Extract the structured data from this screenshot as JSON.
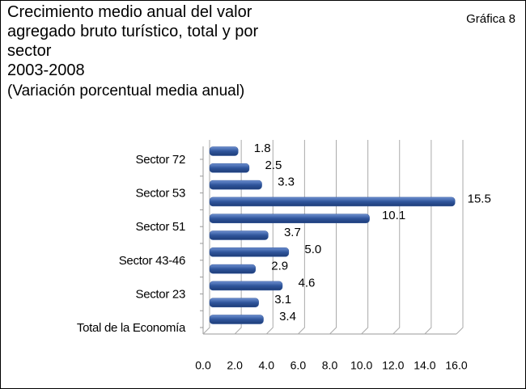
{
  "chart_data": {
    "type": "hbar",
    "title": "Crecimiento medio anual del valor agregado bruto turístico, total y por sector",
    "period": "2003-2008",
    "subtitle": "(Variación porcentual media anual)",
    "annotation": "Gráfica 8",
    "categories": [
      "Sector 72",
      null,
      "Sector 53",
      null,
      "Sector 51",
      null,
      "Sector 43-46",
      null,
      "Sector 23",
      null,
      "Total de la Economía"
    ],
    "values": [
      1.8,
      2.5,
      3.3,
      15.5,
      10.1,
      3.7,
      5.0,
      2.9,
      4.6,
      3.1,
      3.4
    ],
    "value_labels": [
      "1.8",
      "2.5",
      "3.3",
      "15.5",
      "10.1",
      "3.7",
      "5.0",
      "2.9",
      "4.6",
      "3.1",
      "3.4"
    ],
    "color": "#2f559b",
    "xlim": [
      0,
      16
    ],
    "xticks": [
      {
        "value": 0,
        "label": "0.0"
      },
      {
        "value": 2,
        "label": "2.0"
      },
      {
        "value": 4,
        "label": "4.0"
      },
      {
        "value": 6,
        "label": "6.0"
      },
      {
        "value": 8,
        "label": "8.0"
      },
      {
        "value": 10,
        "label": "10.0"
      },
      {
        "value": 12,
        "label": "12.0"
      },
      {
        "value": 14,
        "label": "14.0"
      },
      {
        "value": 16,
        "label": "16.0"
      }
    ],
    "grid": true
  }
}
